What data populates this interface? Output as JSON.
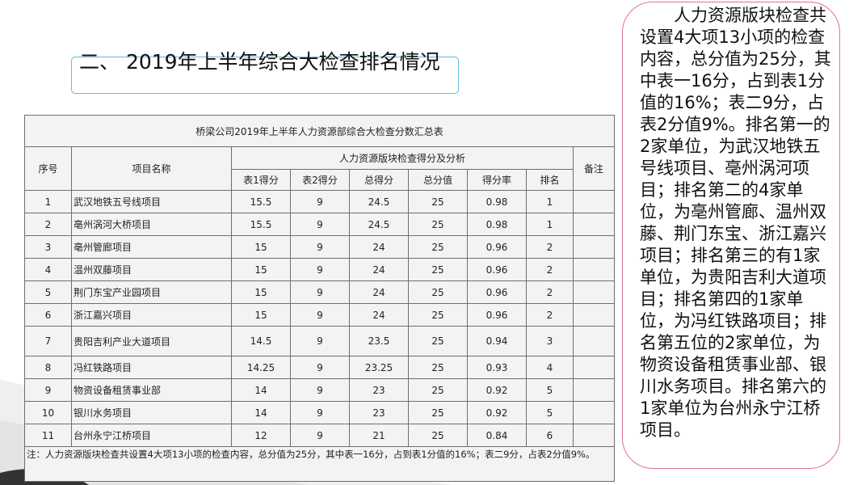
{
  "heading": "二、 2019年上半年综合大检查排名情况",
  "table": {
    "title": "桥梁公司2019年上半年人力资源部综合大检查分数汇总表",
    "headers": {
      "seq": "序号",
      "project": "项目名称",
      "group": "人力资源版块检查得分及分析",
      "remark": "备注",
      "sub": [
        "表1得分",
        "表2得分",
        "总得分",
        "总分值",
        "得分率",
        "排名"
      ]
    },
    "rows": [
      {
        "seq": "1",
        "name": "武汉地铁五号线项目",
        "t1": "15.5",
        "t2": "9",
        "total": "24.5",
        "full": "25",
        "rate": "0.98",
        "rank": "1"
      },
      {
        "seq": "2",
        "name": "亳州涡河大桥项目",
        "t1": "15.5",
        "t2": "9",
        "total": "24.5",
        "full": "25",
        "rate": "0.98",
        "rank": "1"
      },
      {
        "seq": "3",
        "name": "亳州管廊项目",
        "t1": "15",
        "t2": "9",
        "total": "24",
        "full": "25",
        "rate": "0.96",
        "rank": "2"
      },
      {
        "seq": "4",
        "name": "温州双藤项目",
        "t1": "15",
        "t2": "9",
        "total": "24",
        "full": "25",
        "rate": "0.96",
        "rank": "2"
      },
      {
        "seq": "5",
        "name": "荆门东宝产业园项目",
        "t1": "15",
        "t2": "9",
        "total": "24",
        "full": "25",
        "rate": "0.96",
        "rank": "2"
      },
      {
        "seq": "6",
        "name": "浙江嘉兴项目",
        "t1": "15",
        "t2": "9",
        "total": "24",
        "full": "25",
        "rate": "0.96",
        "rank": "2"
      },
      {
        "seq": "7",
        "name": "贵阳吉利产业大道项目",
        "t1": "14.5",
        "t2": "9",
        "total": "23.5",
        "full": "25",
        "rate": "0.94",
        "rank": "3"
      },
      {
        "seq": "8",
        "name": "冯红铁路项目",
        "t1": "14.25",
        "t2": "9",
        "total": "23.25",
        "full": "25",
        "rate": "0.93",
        "rank": "4"
      },
      {
        "seq": "9",
        "name": "物资设备租赁事业部",
        "t1": "14",
        "t2": "9",
        "total": "23",
        "full": "25",
        "rate": "0.92",
        "rank": "5"
      },
      {
        "seq": "10",
        "name": "银川水务项目",
        "t1": "14",
        "t2": "9",
        "total": "23",
        "full": "25",
        "rate": "0.92",
        "rank": "5"
      },
      {
        "seq": "11",
        "name": "台州永宁江桥项目",
        "t1": "12",
        "t2": "9",
        "total": "21",
        "full": "25",
        "rate": "0.84",
        "rank": "6"
      }
    ],
    "note": "注：人力资源版块检查共设置4大项13小项的检查内容，总分值为25分，其中表一16分，占到表1分值的16%；表二9分，占表2分值9%。"
  },
  "callout": "人力资源版块检查共设置4大项13小项的检查内容，总分值为25分，其中表一16分，占到表1分值的16%；表二9分，占表2分值9%。排名第一的2家单位，为武汉地铁五号线项目、亳州涡河项目；排名第二的4家单位，为亳州管廊、温州双藤、荆门东宝、浙江嘉兴项目；排名第三的有1家单位，为贵阳吉利大道项目；排名第四的1家单位，为冯红铁路项目；排名第五位的2家单位，为物资设备租赁事业部、银川水务项目。排名第六的1家单位为台州永宁江桥项目。"
}
